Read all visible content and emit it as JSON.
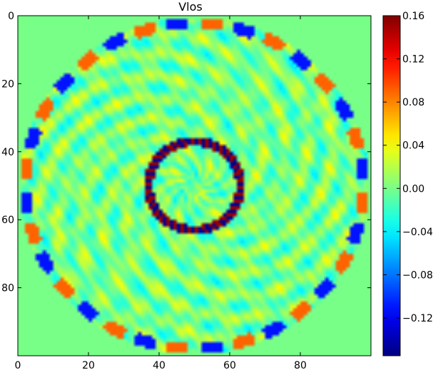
{
  "chart_data": {
    "type": "heatmap",
    "title": "Vlos",
    "xlabel": "",
    "ylabel": "",
    "xlim": [
      0,
      100
    ],
    "ylim": [
      100,
      0
    ],
    "x_ticks": [
      {
        "value": 0,
        "label": "0"
      },
      {
        "value": 20,
        "label": "20"
      },
      {
        "value": 40,
        "label": "40"
      },
      {
        "value": 60,
        "label": "60"
      },
      {
        "value": 80,
        "label": "80"
      }
    ],
    "y_ticks": [
      {
        "value": 0,
        "label": "0"
      },
      {
        "value": 20,
        "label": "20"
      },
      {
        "value": 40,
        "label": "40"
      },
      {
        "value": 60,
        "label": "60"
      },
      {
        "value": 80,
        "label": "80"
      }
    ],
    "grid": false,
    "colormap": "jet",
    "background_value": 0.0,
    "disk": {
      "center": [
        49.5,
        49.5
      ],
      "radius": 49.5
    },
    "inner_ring": {
      "center": [
        49.5,
        49.5
      ],
      "radius": 13,
      "amplitude": 0.15
    },
    "edge_band": {
      "radius_from": 46,
      "lobes": 16,
      "amplitude": 0.1
    },
    "colorbar": {
      "vmin": -0.155,
      "vmax": 0.16,
      "ticks": [
        {
          "value": 0.16,
          "label": "0.16"
        },
        {
          "value": 0.12,
          "label": "0.12"
        },
        {
          "value": 0.08,
          "label": "0.08"
        },
        {
          "value": 0.04,
          "label": "0.04"
        },
        {
          "value": 0.0,
          "label": "0.00"
        },
        {
          "value": -0.04,
          "label": "−0.04"
        },
        {
          "value": -0.08,
          "label": "−0.08"
        },
        {
          "value": -0.12,
          "label": "−0.12"
        }
      ]
    }
  }
}
